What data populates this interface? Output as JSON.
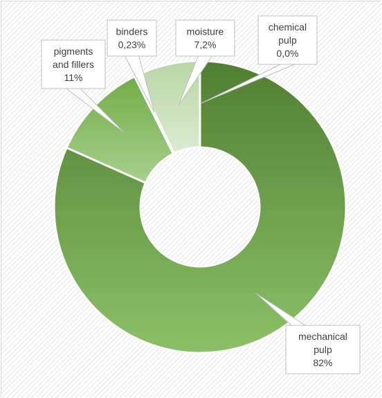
{
  "chart_data": {
    "type": "pie",
    "variant": "donut",
    "title": "",
    "slices": [
      {
        "label_lines": [
          "chemical",
          "pulp",
          "0,0%"
        ],
        "value": 0.0,
        "color": "#4a7a2c"
      },
      {
        "label_lines": [
          "mechanical",
          "pulp",
          "82%"
        ],
        "value": 82.0,
        "color": "#70ad47"
      },
      {
        "label_lines": [
          "pigments",
          "and fillers",
          "11%"
        ],
        "value": 11.0,
        "color": "#8cc46a"
      },
      {
        "label_lines": [
          "binders",
          "0,23%"
        ],
        "value": 0.23,
        "color": "#b7d7a2"
      },
      {
        "label_lines": [
          "moisture",
          "7,2%"
        ],
        "value": 7.2,
        "color": "#cfe4c1"
      }
    ],
    "legend": "none",
    "background": "hatched"
  }
}
